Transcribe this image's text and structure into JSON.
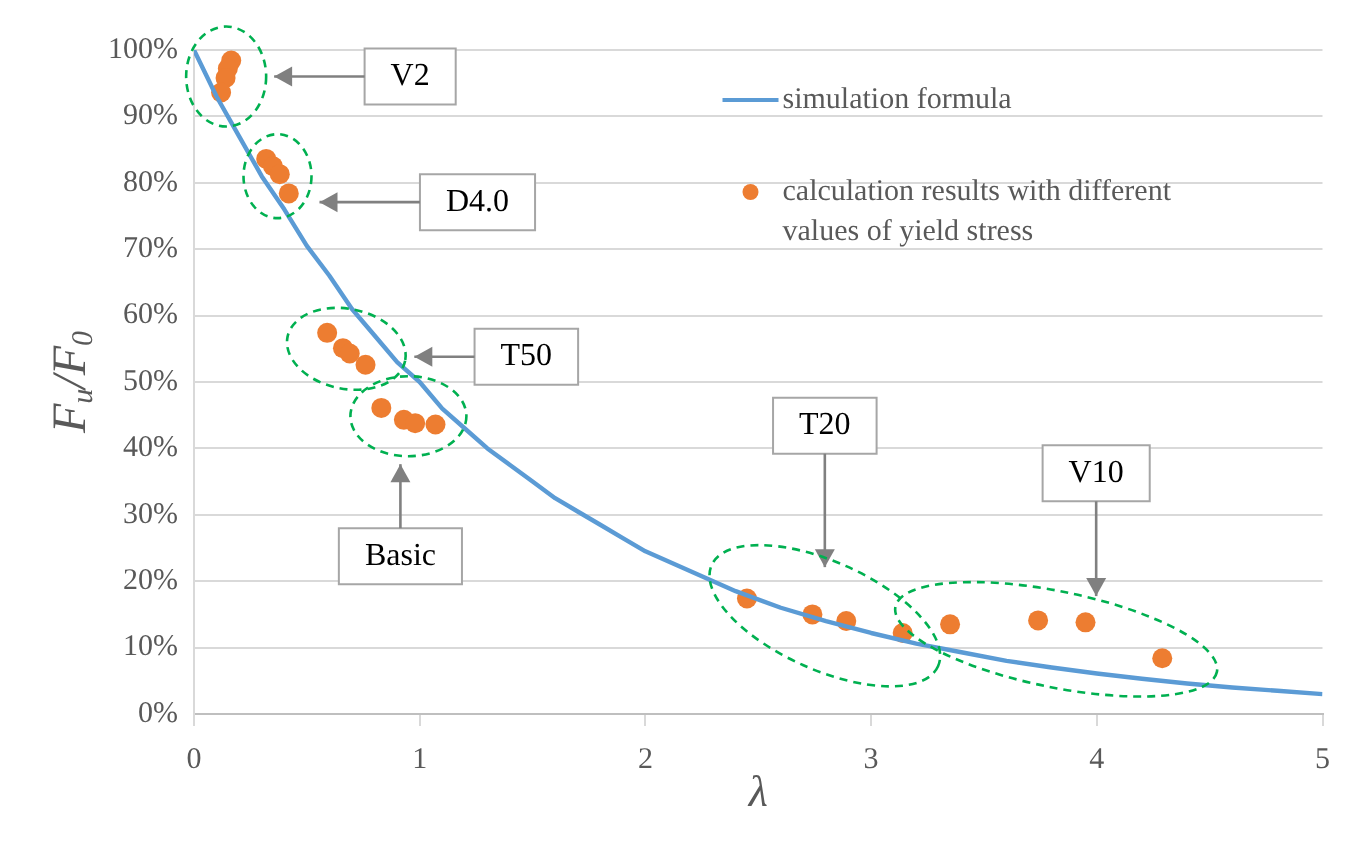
{
  "chart_data": {
    "type": "scatter",
    "xlabel": "λ",
    "ylabel": "F$_{u}$/F$_{0}$",
    "xlim": [
      0,
      5
    ],
    "xticks": [
      0,
      1,
      2,
      3,
      4,
      5
    ],
    "ylim": [
      0,
      100
    ],
    "yticks": [
      {
        "value": 0,
        "label": "0%"
      },
      {
        "value": 10,
        "label": "10%"
      },
      {
        "value": 20,
        "label": "20%"
      },
      {
        "value": 30,
        "label": "30%"
      },
      {
        "value": 40,
        "label": "40%"
      },
      {
        "value": 50,
        "label": "50%"
      },
      {
        "value": 60,
        "label": "60%"
      },
      {
        "value": 70,
        "label": "70%"
      },
      {
        "value": 80,
        "label": "80%"
      },
      {
        "value": 90,
        "label": "90%"
      },
      {
        "value": 100,
        "label": "100%"
      }
    ],
    "grid": "y",
    "legend": "top right",
    "series": [
      {
        "name": "simulation formula",
        "type": "line",
        "color": "#5b9bd5",
        "marker": "none",
        "x": [
          0,
          0.1,
          0.2,
          0.3,
          0.4,
          0.5,
          0.6,
          0.7,
          0.8,
          0.9,
          1,
          1.1,
          1.2,
          1.3,
          1.4,
          1.5,
          1.6,
          1.7,
          1.8,
          1.9,
          2,
          2.2,
          2.4,
          2.6,
          2.8,
          3,
          3.2,
          3.4,
          3.6,
          3.8,
          4,
          4.2,
          4.4,
          4.6,
          4.8,
          5
        ],
        "values": [
          100,
          93,
          87,
          81,
          76,
          70.5,
          66,
          61,
          57,
          53,
          50,
          46,
          43,
          40,
          37.5,
          35,
          32.5,
          30.5,
          28.5,
          26.5,
          24.5,
          21.5,
          18.5,
          16,
          14,
          12.2,
          10.6,
          9.3,
          8,
          7,
          6.1,
          5.3,
          4.6,
          4,
          3.5,
          3
        ]
      },
      {
        "name": "calculation results with different values of yield stress",
        "color": "#ed7d31",
        "marker": "circle",
        "x": [
          0.165,
          0.15,
          0.14,
          0.12,
          0.32,
          0.35,
          0.38,
          0.42,
          0.59,
          0.66,
          0.69,
          0.76,
          0.83,
          0.93,
          0.98,
          1.07,
          2.45,
          2.74,
          2.89,
          3.14,
          3.35,
          3.74,
          3.95,
          4.29
        ],
        "values": [
          98.4,
          97.2,
          95.8,
          93.6,
          83.6,
          82.5,
          81.3,
          78.4,
          57.4,
          55.1,
          54.3,
          52.6,
          46.1,
          44.3,
          43.8,
          43.6,
          17.4,
          15.0,
          14.0,
          12.2,
          13.5,
          14.1,
          13.8,
          8.4
        ]
      }
    ],
    "annotations": [
      "V2",
      "D4.0",
      "T50",
      "Basic",
      "T20",
      "V10"
    ]
  }
}
